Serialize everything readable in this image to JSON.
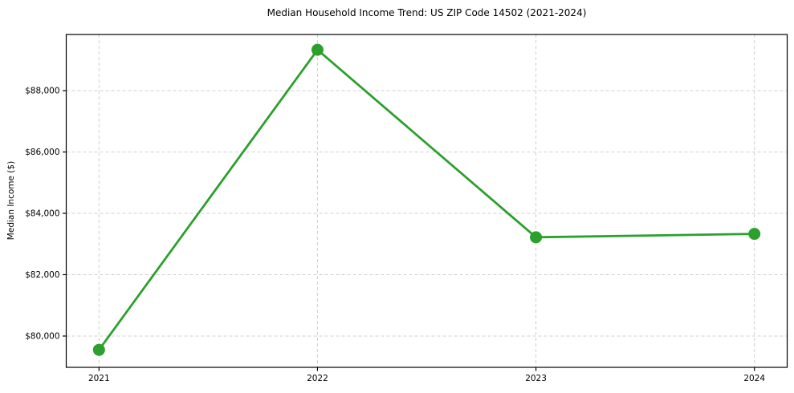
{
  "chart_data": {
    "type": "line",
    "title": "Median Household Income Trend: US ZIP Code 14502 (2021-2024)",
    "xlabel": "",
    "ylabel": "Median Income ($)",
    "categories": [
      2021,
      2022,
      2023,
      2024
    ],
    "x_tick_labels": [
      "2021",
      "2022",
      "2023",
      "2024"
    ],
    "series": [
      {
        "name": "Median Household Income",
        "values": [
          79550,
          89330,
          83220,
          83330
        ]
      }
    ],
    "y_ticks": [
      80000,
      82000,
      84000,
      86000,
      88000
    ],
    "y_tick_labels": [
      "$80,000",
      "$82,000",
      "$84,000",
      "$86,000",
      "$88,000"
    ],
    "xlim": [
      2020.85,
      2024.15
    ],
    "ylim": [
      78980,
      89830
    ],
    "grid": true,
    "grid_style": "dashed",
    "legend": "none",
    "colors": {
      "line": "#2ca02c",
      "marker": "#2ca02c",
      "grid": "#cfcfcf",
      "spine": "#000000",
      "background": "#ffffff",
      "text": "#000000"
    }
  }
}
